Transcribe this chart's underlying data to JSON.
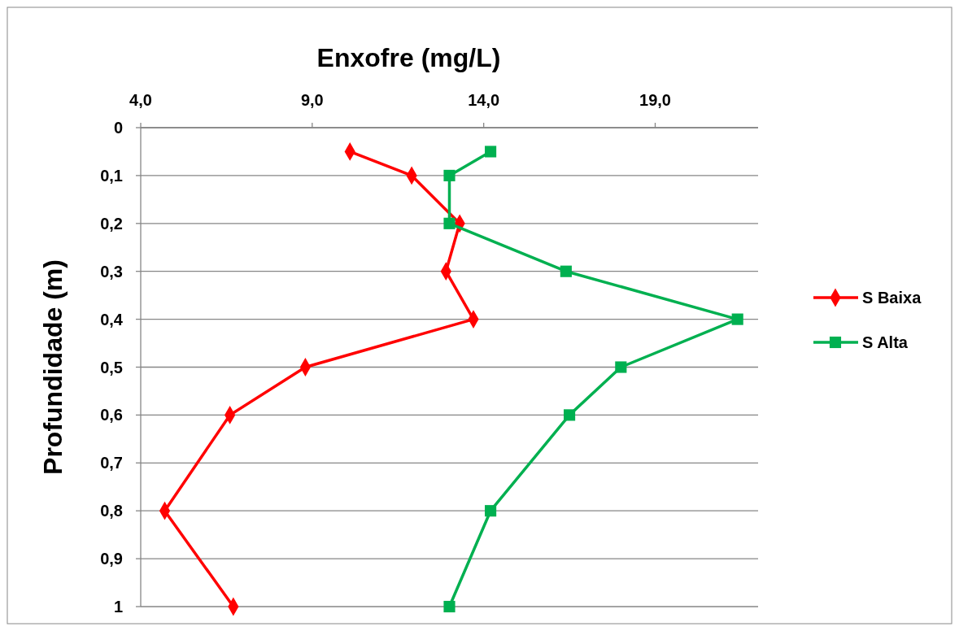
{
  "chart_data": {
    "type": "line",
    "xlabel": "Enxofre (mg/L)",
    "ylabel": "Profundidade (m)",
    "xlim": [
      4,
      22
    ],
    "xticks": [
      {
        "value": 4,
        "label": "4,0"
      },
      {
        "value": 9,
        "label": "9,0"
      },
      {
        "value": 14,
        "label": "14,0"
      },
      {
        "value": 19,
        "label": "19,0"
      }
    ],
    "ylim": [
      1,
      0
    ],
    "yticks": [
      0,
      {
        "value": 0.1,
        "label": "0,1"
      },
      {
        "value": 0.2,
        "label": "0,2"
      },
      {
        "value": 0.3,
        "label": "0,3"
      },
      {
        "value": 0.4,
        "label": "0,4"
      },
      {
        "value": 0.5,
        "label": "0,5"
      },
      {
        "value": 0.6,
        "label": "0,6"
      },
      {
        "value": 0.7,
        "label": "0,7"
      },
      {
        "value": 0.8,
        "label": "0,8"
      },
      {
        "value": 0.9,
        "label": "0,9"
      },
      1
    ],
    "grid": "y",
    "legend": "right",
    "line_style": "solid",
    "series": [
      {
        "name": "S Baixa",
        "color": "#ff0000",
        "marker": "diamond",
        "x": [
          10.1,
          11.9,
          13.3,
          12.9,
          13.7,
          8.8,
          6.6,
          4.7,
          6.7
        ],
        "values": [
          0.05,
          0.1,
          0.2,
          0.3,
          0.4,
          0.5,
          0.6,
          0.8,
          1
        ]
      },
      {
        "name": "S Alta",
        "color": "#00b050",
        "marker": "square",
        "x": [
          14.2,
          13.0,
          13.0,
          16.4,
          21.4,
          18.0,
          16.5,
          14.2,
          13.0
        ],
        "values": [
          0.05,
          0.1,
          0.2,
          0.3,
          0.4,
          0.5,
          0.6,
          0.8,
          1
        ]
      }
    ]
  }
}
